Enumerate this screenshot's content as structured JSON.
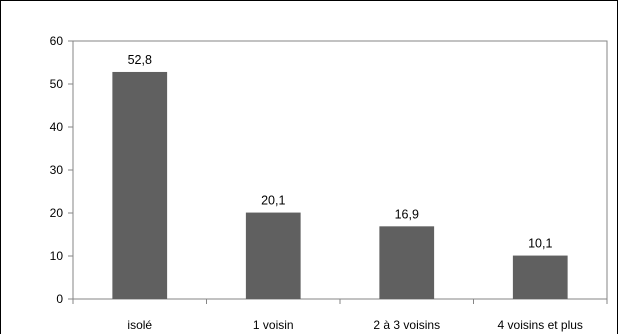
{
  "chart_data": {
    "type": "bar",
    "categories": [
      "isolé",
      "1 voisin",
      "2 à 3 voisins",
      "4 voisins et plus"
    ],
    "values": [
      52.8,
      20.1,
      16.9,
      10.1
    ],
    "data_labels": [
      "52,8",
      "20,1",
      "16,9",
      "10,1"
    ],
    "yticks": [
      0,
      10,
      20,
      30,
      40,
      50,
      60
    ],
    "ylim": [
      0,
      60
    ],
    "grid": false,
    "legend": "none",
    "bar_color": "#606060"
  }
}
